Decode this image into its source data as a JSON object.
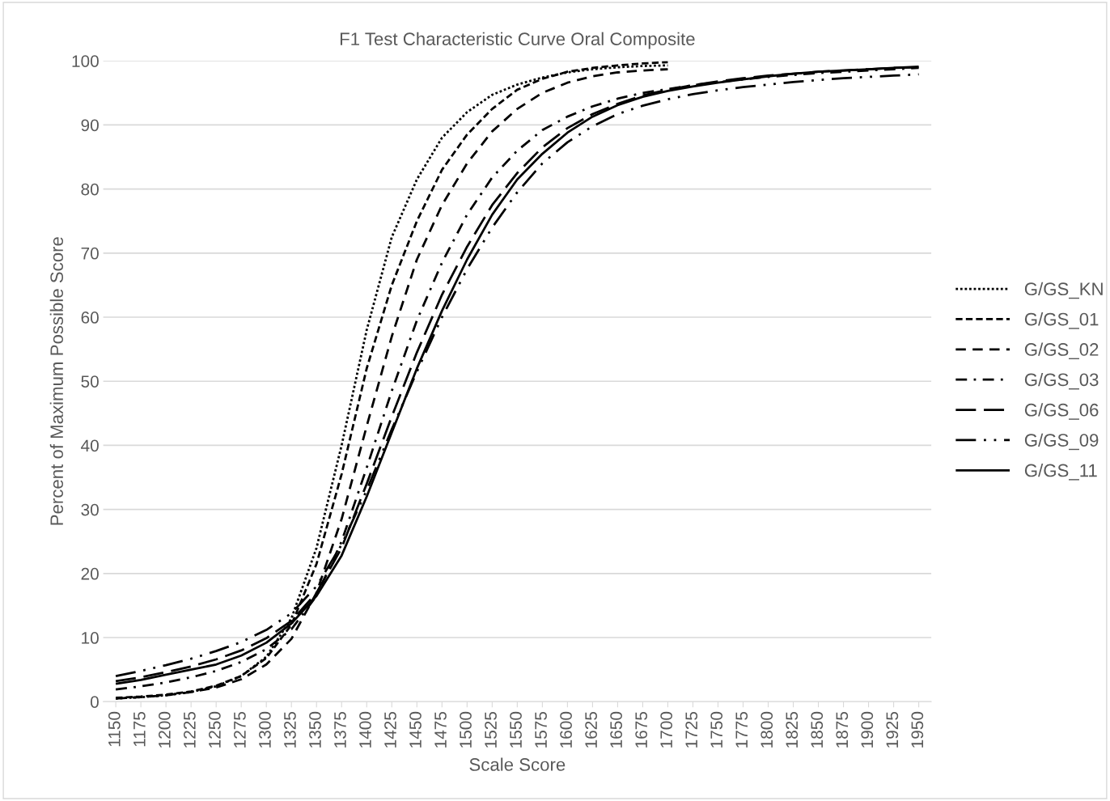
{
  "chart_data": {
    "type": "line",
    "title": "F1 Test Characteristic Curve Oral Composite",
    "xlabel": "Scale Score",
    "ylabel": "Percent of Maximum Possible Score",
    "categories": [
      "1150",
      "1175",
      "1200",
      "1225",
      "1250",
      "1275",
      "1300",
      "1325",
      "1350",
      "1375",
      "1400",
      "1425",
      "1450",
      "1475",
      "1500",
      "1525",
      "1550",
      "1575",
      "1600",
      "1625",
      "1650",
      "1675",
      "1700",
      "1725",
      "1750",
      "1775",
      "1800",
      "1825",
      "1850",
      "1875",
      "1900",
      "1925",
      "1950"
    ],
    "ylim": [
      0,
      100
    ],
    "yticks": [
      0,
      10,
      20,
      30,
      40,
      50,
      60,
      70,
      80,
      90,
      100
    ],
    "grid": "y",
    "legend": "right",
    "marker": "none",
    "series": [
      {
        "name": "G/GS_KN",
        "color": "#000000",
        "line_style": "dotted",
        "values": [
          0.5,
          0.7,
          1.0,
          1.5,
          2.4,
          4.0,
          7.0,
          13,
          24,
          40,
          58,
          72.5,
          81.5,
          88,
          92,
          94.7,
          96.3,
          97.4,
          98.2,
          98.7,
          99.0,
          99.2,
          99.3,
          null,
          null,
          null,
          null,
          null,
          null,
          null,
          null,
          null,
          null
        ]
      },
      {
        "name": "G/GS_01",
        "color": "#000000",
        "line_style": "dashed",
        "values": [
          0.6,
          0.8,
          1.1,
          1.6,
          2.5,
          4.0,
          6.8,
          12,
          21.5,
          35.5,
          52,
          65,
          75,
          83,
          88.5,
          92.5,
          95.5,
          97.2,
          98.3,
          98.9,
          99.3,
          99.6,
          99.8,
          null,
          null,
          null,
          null,
          null,
          null,
          null,
          null,
          null,
          null
        ]
      },
      {
        "name": "G/GS_02",
        "color": "#000000",
        "line_style": "medium dash",
        "values": [
          0.5,
          0.7,
          1.0,
          1.5,
          2.2,
          3.5,
          5.8,
          9.8,
          17,
          28.5,
          43,
          57,
          69,
          77.5,
          84,
          89,
          92.5,
          95,
          96.6,
          97.6,
          98.2,
          98.5,
          98.7,
          null,
          null,
          null,
          null,
          null,
          null,
          null,
          null,
          null,
          null
        ]
      },
      {
        "name": "G/GS_03",
        "color": "#000000",
        "line_style": "dash dot",
        "values": [
          1.9,
          2.4,
          3.0,
          3.8,
          4.8,
          6.2,
          8.2,
          11.3,
          16.5,
          25,
          36.5,
          48.5,
          59.5,
          68.5,
          76,
          81.8,
          86,
          89.2,
          91.3,
          92.9,
          94.1,
          95.0,
          95.6,
          96.2,
          96.7,
          97.1,
          97.5,
          97.8,
          98.1,
          98.3,
          98.5,
          98.7,
          98.9
        ]
      },
      {
        "name": "G/GS_06",
        "color": "#000000",
        "line_style": "long dash",
        "values": [
          3.2,
          3.8,
          4.6,
          5.5,
          6.6,
          8.0,
          9.9,
          12.6,
          17,
          24,
          34,
          44.5,
          54.5,
          63.5,
          71,
          77.5,
          82.5,
          86.5,
          89.5,
          91.7,
          93.3,
          94.6,
          95.5,
          96.2,
          96.8,
          97.3,
          97.7,
          98.0,
          98.3,
          98.5,
          98.7,
          98.9,
          99.0
        ]
      },
      {
        "name": "G/GS_09",
        "color": "#000000",
        "line_style": "long dash dot dot",
        "values": [
          4.0,
          4.8,
          5.7,
          6.7,
          7.9,
          9.3,
          11.2,
          13.8,
          18,
          24.5,
          33,
          42.5,
          51.5,
          60,
          67.5,
          74,
          79.5,
          84,
          87.3,
          89.8,
          91.7,
          93.0,
          94.0,
          94.8,
          95.4,
          95.9,
          96.3,
          96.7,
          97.0,
          97.3,
          97.5,
          97.7,
          97.9
        ]
      },
      {
        "name": "G/GS_11",
        "color": "#000000",
        "line_style": "solid",
        "values": [
          2.8,
          3.4,
          4.2,
          5.0,
          5.8,
          7.2,
          9.2,
          12.2,
          16.5,
          22.8,
          32,
          42,
          52,
          61,
          69,
          76,
          81.5,
          85.5,
          88.8,
          91.3,
          93.1,
          94.4,
          95.3,
          96.0,
          96.6,
          97.1,
          97.6,
          98.0,
          98.3,
          98.5,
          98.7,
          98.9,
          99.1
        ]
      }
    ]
  }
}
